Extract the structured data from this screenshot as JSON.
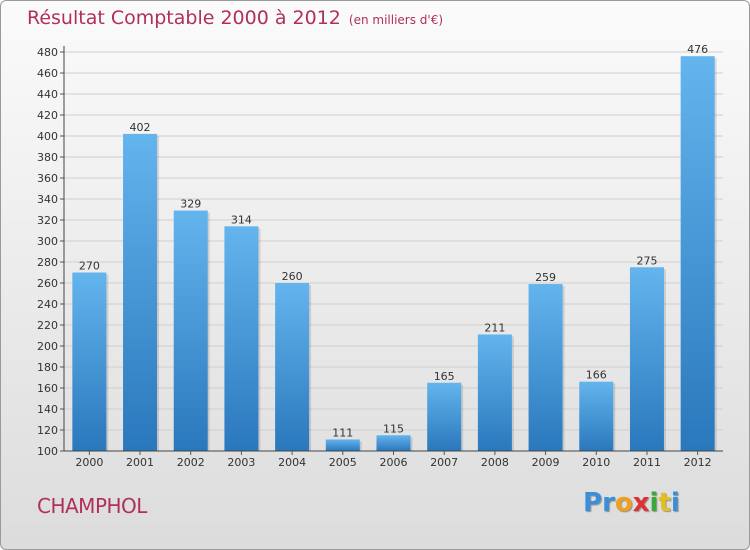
{
  "title": "Résultat Comptable 2000 à 2012",
  "subtitle": "(en milliers d'€)",
  "commune": "CHAMPHOL",
  "logo": {
    "letters": [
      "P",
      "r",
      "o",
      "x",
      "i",
      "t",
      "i"
    ],
    "colors": [
      "#3a8fd8",
      "#3a8fd8",
      "#f0a020",
      "#e03030",
      "#3aa83a",
      "#e0c020",
      "#3a8fd8"
    ]
  },
  "colors": {
    "bar_light": "#64b4ee",
    "bar_dark": "#2a78bc",
    "title": "#b0305a"
  },
  "chart_data": {
    "type": "bar",
    "title": "Résultat Comptable 2000 à 2012",
    "xlabel": "",
    "ylabel": "en milliers d'€",
    "categories": [
      "2000",
      "2001",
      "2002",
      "2003",
      "2004",
      "2005",
      "2006",
      "2007",
      "2008",
      "2009",
      "2010",
      "2011",
      "2012"
    ],
    "values": [
      270,
      402,
      329,
      314,
      260,
      111,
      115,
      165,
      211,
      259,
      166,
      275,
      476
    ],
    "ylim": [
      100,
      480
    ],
    "yticks": [
      100,
      120,
      140,
      160,
      180,
      200,
      220,
      240,
      260,
      280,
      300,
      320,
      340,
      360,
      380,
      400,
      420,
      440,
      460,
      480
    ],
    "grid": true
  }
}
